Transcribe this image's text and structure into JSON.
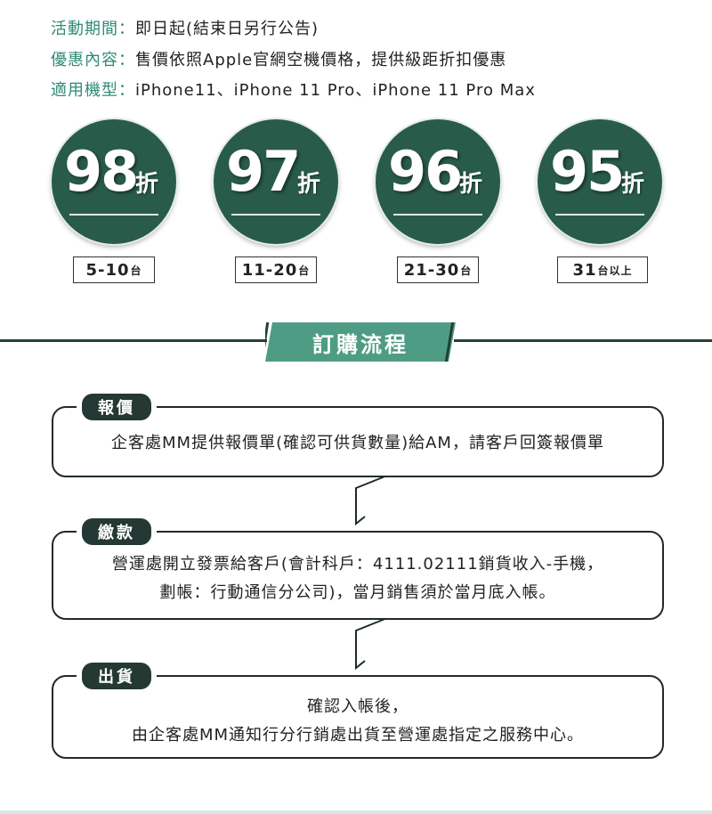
{
  "info": [
    {
      "label": "活動期間：",
      "value": "即日起(結束日另行公告)"
    },
    {
      "label": "優惠內容：",
      "value": "售價依照Apple官網空機價格，提供級距折扣優惠"
    },
    {
      "label": "適用機型：",
      "value": "iPhone11、iPhone 11 Pro、iPhone 11 Pro Max"
    }
  ],
  "discounts": [
    {
      "value": "98",
      "unit": "折",
      "qty": "5-10",
      "qty_unit": "台"
    },
    {
      "value": "97",
      "unit": "折",
      "qty": "11-20",
      "qty_unit": "台"
    },
    {
      "value": "96",
      "unit": "折",
      "qty": "21-30",
      "qty_unit": "台"
    },
    {
      "value": "95",
      "unit": "折",
      "qty": "31",
      "qty_unit": "台以上"
    }
  ],
  "section_title": "訂購流程",
  "colors": {
    "brand_green": "#295b4a",
    "accent_green": "#2f8b74",
    "banner_green": "#4f9c84",
    "dark": "#253833"
  },
  "steps": [
    {
      "tag": "報價",
      "lines": [
        "企客處MM提供報價單(確認可供貨數量)給AM，請客戶回簽報價單"
      ]
    },
    {
      "tag": "繳款",
      "lines": [
        "營運處開立發票給客戶(會計科戶：4111.02111銷貨收入-手機，",
        "劃帳：行動通信分公司)，當月銷售須於當月底入帳。"
      ]
    },
    {
      "tag": "出貨",
      "lines": [
        "確認入帳後，",
        "由企客處MM通知行分行銷處出貨至營運處指定之服務中心。"
      ]
    }
  ]
}
